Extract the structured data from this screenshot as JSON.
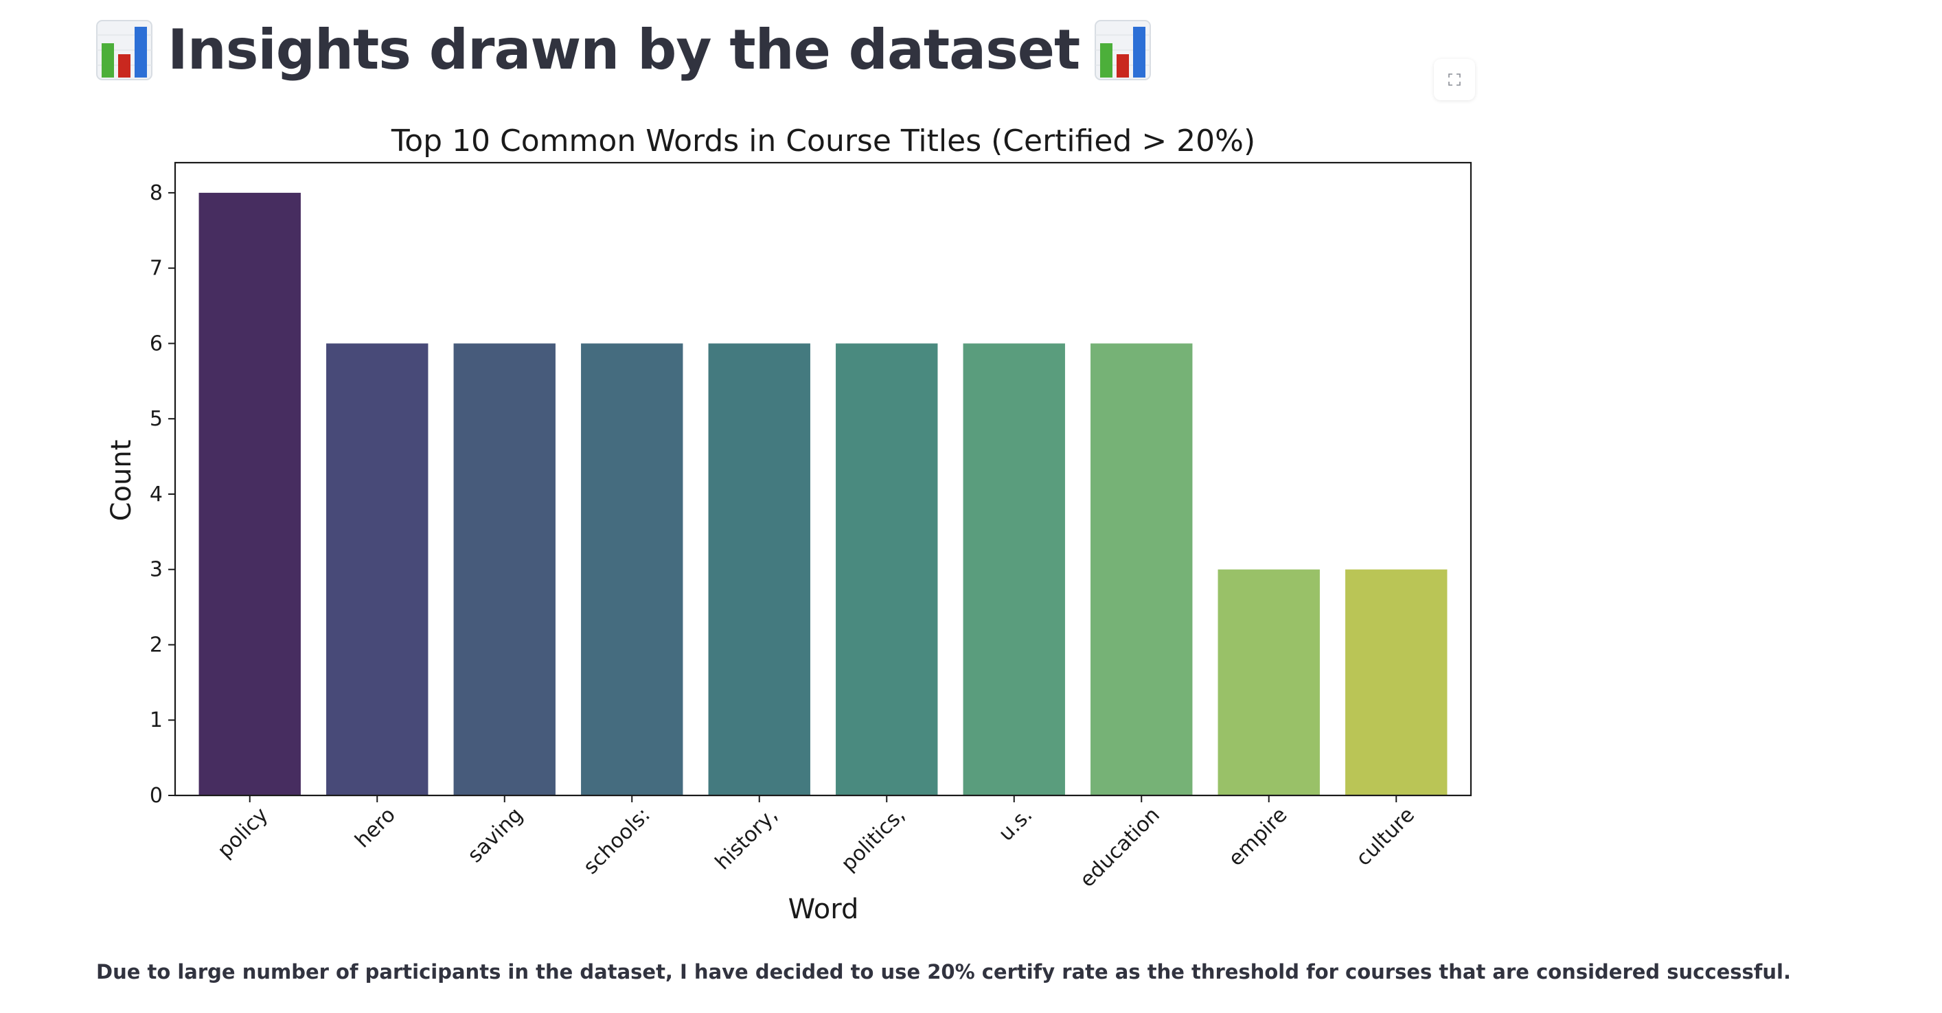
{
  "header": {
    "title": "Insights drawn by the dataset",
    "leading_icon": "bar-chart-emoji",
    "trailing_icon": "bar-chart-emoji"
  },
  "toolbar": {
    "fullscreen_icon": "expand-icon"
  },
  "chart_data": {
    "type": "bar",
    "title": "Top 10 Common Words in Course Titles (Certified > 20%)",
    "xlabel": "Word",
    "ylabel": "Count",
    "ylim": [
      0,
      8.4
    ],
    "yticks": [
      "0",
      "1",
      "2",
      "3",
      "4",
      "5",
      "6",
      "7",
      "8"
    ],
    "categories": [
      "policy",
      "hero",
      "saving",
      "schools:",
      "history,",
      "politics,",
      "u.s.",
      "education",
      "empire",
      "culture"
    ],
    "values": [
      8,
      6,
      6,
      6,
      6,
      6,
      6,
      6,
      3,
      3
    ],
    "colors": [
      "#472d60",
      "#484a78",
      "#475b7b",
      "#456c7f",
      "#447a7f",
      "#4a8a7f",
      "#5a9d7d",
      "#76b276",
      "#99c168",
      "#bac556"
    ],
    "grid": false,
    "legend": "none"
  },
  "caption": {
    "text": "Due to large number of participants in the dataset, I have decided to use 20% certify rate as the threshold for courses that are considered successful."
  }
}
